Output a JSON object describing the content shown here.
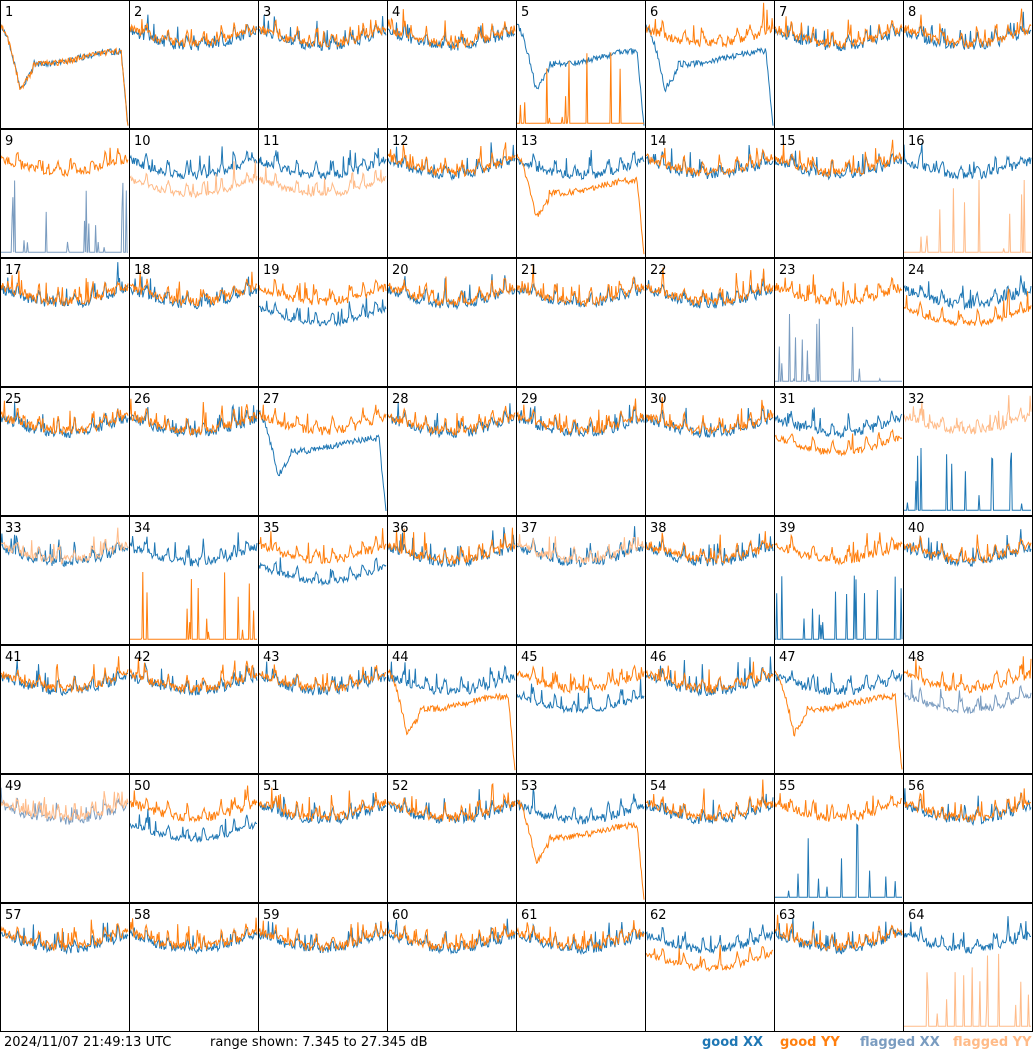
{
  "colors": {
    "good_xx": "#1f77b4",
    "good_yy": "#ff7f0e",
    "flagged_xx": "#7a9cc0",
    "flagged_yy": "#ffbb88",
    "grid": "#000000"
  },
  "footer": {
    "timestamp": "2024/11/07 21:49:13 UTC",
    "range": "range shown: 7.345 to 27.345 dB",
    "legend": {
      "good_xx": "good XX",
      "good_yy": "good YY",
      "flagged_xx": "flagged XX",
      "flagged_yy": "flagged YY"
    }
  },
  "chart_data": {
    "type": "line",
    "y_range_db": [
      7.345,
      27.345
    ],
    "grid": "8x8",
    "panels": [
      {
        "id": "1",
        "xx": "dip",
        "yy": "dip"
      },
      {
        "id": "2",
        "xx": "normal",
        "yy": "normal"
      },
      {
        "id": "3",
        "xx": "normal",
        "yy": "normal"
      },
      {
        "id": "4",
        "xx": "normal",
        "yy": "normal"
      },
      {
        "id": "5",
        "xx": "dip",
        "yy": "spikes"
      },
      {
        "id": "6",
        "xx": "dip",
        "yy": "normal"
      },
      {
        "id": "7",
        "xx": "normal",
        "yy": "normal"
      },
      {
        "id": "8",
        "xx": "normal",
        "yy": "normal"
      },
      {
        "id": "9",
        "xx": "spikes",
        "yy": "normal",
        "xx_flagged": true
      },
      {
        "id": "10",
        "xx": "normal",
        "yy": "low",
        "yy_flagged": true
      },
      {
        "id": "11",
        "xx": "normal",
        "yy": "low",
        "yy_flagged": true
      },
      {
        "id": "12",
        "xx": "normal",
        "yy": "normal"
      },
      {
        "id": "13",
        "xx": "normal",
        "yy": "dip"
      },
      {
        "id": "14",
        "xx": "normal",
        "yy": "normal"
      },
      {
        "id": "15",
        "xx": "normal",
        "yy": "normal"
      },
      {
        "id": "16",
        "xx": "normal",
        "yy": "spikes",
        "yy_flagged": true
      },
      {
        "id": "17",
        "xx": "normal",
        "yy": "normal"
      },
      {
        "id": "18",
        "xx": "normal",
        "yy": "normal"
      },
      {
        "id": "19",
        "xx": "low",
        "yy": "normal"
      },
      {
        "id": "20",
        "xx": "normal",
        "yy": "normal"
      },
      {
        "id": "21",
        "xx": "normal",
        "yy": "normal"
      },
      {
        "id": "22",
        "xx": "normal",
        "yy": "normal"
      },
      {
        "id": "23",
        "xx": "spikes",
        "yy": "normal",
        "xx_flagged": true
      },
      {
        "id": "24",
        "xx": "normal",
        "yy": "low"
      },
      {
        "id": "25",
        "xx": "normal",
        "yy": "normal"
      },
      {
        "id": "26",
        "xx": "normal",
        "yy": "normal"
      },
      {
        "id": "27",
        "xx": "dip",
        "yy": "normal"
      },
      {
        "id": "28",
        "xx": "normal",
        "yy": "normal"
      },
      {
        "id": "29",
        "xx": "normal",
        "yy": "normal"
      },
      {
        "id": "30",
        "xx": "normal",
        "yy": "normal"
      },
      {
        "id": "31",
        "xx": "normal",
        "yy": "low"
      },
      {
        "id": "32",
        "xx": "spikes",
        "yy": "normal",
        "yy_flagged": true
      },
      {
        "id": "33",
        "xx": "normal",
        "yy": "normal",
        "yy_flagged": true
      },
      {
        "id": "34",
        "xx": "normal",
        "yy": "spikes"
      },
      {
        "id": "35",
        "xx": "low",
        "yy": "normal"
      },
      {
        "id": "36",
        "xx": "normal",
        "yy": "normal"
      },
      {
        "id": "37",
        "xx": "normal",
        "yy": "normal",
        "yy_flagged": true
      },
      {
        "id": "38",
        "xx": "normal",
        "yy": "normal"
      },
      {
        "id": "39",
        "xx": "spikes",
        "yy": "normal"
      },
      {
        "id": "40",
        "xx": "normal",
        "yy": "normal"
      },
      {
        "id": "41",
        "xx": "normal",
        "yy": "normal"
      },
      {
        "id": "42",
        "xx": "normal",
        "yy": "normal"
      },
      {
        "id": "43",
        "xx": "normal",
        "yy": "normal"
      },
      {
        "id": "44",
        "xx": "normal",
        "yy": "dip"
      },
      {
        "id": "45",
        "xx": "low",
        "yy": "normal"
      },
      {
        "id": "46",
        "xx": "normal",
        "yy": "normal"
      },
      {
        "id": "47",
        "xx": "normal",
        "yy": "dip"
      },
      {
        "id": "48",
        "xx": "low",
        "yy": "normal",
        "xx_flagged": true
      },
      {
        "id": "49",
        "xx": "normal",
        "yy": "normal",
        "xx_flagged": true,
        "yy_flagged": true
      },
      {
        "id": "50",
        "xx": "low",
        "yy": "normal"
      },
      {
        "id": "51",
        "xx": "normal",
        "yy": "normal"
      },
      {
        "id": "52",
        "xx": "normal",
        "yy": "normal"
      },
      {
        "id": "53",
        "xx": "normal",
        "yy": "dip"
      },
      {
        "id": "54",
        "xx": "normal",
        "yy": "normal"
      },
      {
        "id": "55",
        "xx": "spikes",
        "yy": "normal"
      },
      {
        "id": "56",
        "xx": "normal",
        "yy": "normal"
      },
      {
        "id": "57",
        "xx": "normal",
        "yy": "normal"
      },
      {
        "id": "58",
        "xx": "normal",
        "yy": "normal"
      },
      {
        "id": "59",
        "xx": "normal",
        "yy": "normal"
      },
      {
        "id": "60",
        "xx": "normal",
        "yy": "normal"
      },
      {
        "id": "61",
        "xx": "normal",
        "yy": "normal"
      },
      {
        "id": "62",
        "xx": "normal",
        "yy": "low"
      },
      {
        "id": "63",
        "xx": "normal",
        "yy": "normal"
      },
      {
        "id": "64",
        "xx": "normal",
        "yy": "spikes",
        "yy_flagged": true
      }
    ]
  }
}
